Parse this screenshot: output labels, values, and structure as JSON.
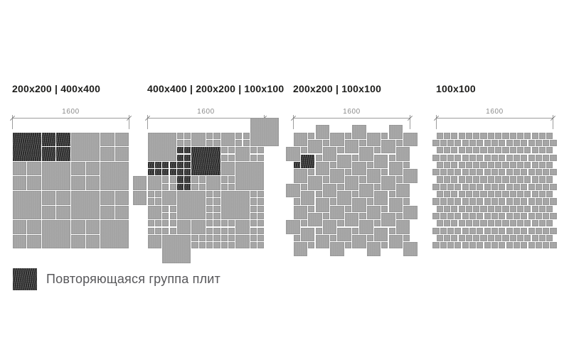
{
  "panels": [
    {
      "label": "200x200 | 400x400",
      "dim": "1600",
      "pattern": {
        "type": "checkerboard",
        "cell": 400,
        "sub": 200,
        "n": 4,
        "dark_cells": [
          [
            0,
            0
          ],
          [
            1,
            0
          ]
        ]
      }
    },
    {
      "label": "400x400 | 200x200 | 100x100",
      "dim": "1600",
      "pattern": {
        "type": "explicit",
        "tiles": [
          [
            1400,
            -200,
            400,
            "g"
          ],
          [
            0,
            0,
            400,
            "g"
          ],
          [
            400,
            0,
            200,
            "g2"
          ],
          [
            600,
            0,
            200,
            "g"
          ],
          [
            800,
            0,
            200,
            "g2"
          ],
          [
            1000,
            0,
            200,
            "g"
          ],
          [
            1200,
            0,
            200,
            "g2"
          ],
          [
            400,
            200,
            200,
            "d2"
          ],
          [
            600,
            200,
            400,
            "d"
          ],
          [
            1000,
            200,
            200,
            "g2"
          ],
          [
            1200,
            200,
            200,
            "g"
          ],
          [
            1400,
            200,
            200,
            "g2"
          ],
          [
            0,
            400,
            200,
            "d2"
          ],
          [
            200,
            400,
            200,
            "d2"
          ],
          [
            400,
            400,
            200,
            "d2"
          ],
          [
            1000,
            400,
            200,
            "g"
          ],
          [
            1200,
            400,
            400,
            "g"
          ],
          [
            -200,
            600,
            200,
            "g"
          ],
          [
            0,
            600,
            200,
            "g"
          ],
          [
            200,
            600,
            200,
            "g2"
          ],
          [
            400,
            600,
            200,
            "d2"
          ],
          [
            600,
            600,
            200,
            "g2"
          ],
          [
            800,
            600,
            200,
            "g"
          ],
          [
            1000,
            600,
            200,
            "g2"
          ],
          [
            -200,
            800,
            200,
            "g"
          ],
          [
            0,
            800,
            200,
            "g2"
          ],
          [
            200,
            800,
            200,
            "g"
          ],
          [
            400,
            800,
            400,
            "g"
          ],
          [
            800,
            800,
            200,
            "g2"
          ],
          [
            1000,
            800,
            400,
            "g"
          ],
          [
            1400,
            800,
            200,
            "g2"
          ],
          [
            0,
            1000,
            200,
            "g"
          ],
          [
            200,
            1000,
            200,
            "g2"
          ],
          [
            800,
            1000,
            200,
            "g2"
          ],
          [
            1400,
            1000,
            200,
            "g2"
          ],
          [
            0,
            1200,
            200,
            "g2"
          ],
          [
            200,
            1200,
            200,
            "g2"
          ],
          [
            400,
            1200,
            200,
            "g"
          ],
          [
            600,
            1200,
            200,
            "g"
          ],
          [
            800,
            1200,
            200,
            "g2"
          ],
          [
            1000,
            1200,
            200,
            "g2"
          ],
          [
            1200,
            1200,
            200,
            "g"
          ],
          [
            1400,
            1200,
            200,
            "g2"
          ],
          [
            0,
            1400,
            200,
            "g"
          ],
          [
            200,
            1400,
            400,
            "g"
          ],
          [
            600,
            1400,
            200,
            "g2"
          ],
          [
            800,
            1400,
            200,
            "g2"
          ],
          [
            1000,
            1400,
            200,
            "g2"
          ],
          [
            1200,
            1400,
            200,
            "g"
          ],
          [
            1400,
            1400,
            200,
            "g2"
          ]
        ]
      }
    },
    {
      "label": "200x200 | 100x100",
      "dim": "1600",
      "pattern": {
        "type": "pinwheel",
        "big": 200,
        "small": 100,
        "extent": 1600,
        "dark_big": [
          100,
          300
        ],
        "dark_small": [
          0,
          400
        ]
      }
    },
    {
      "label": "100x100",
      "dim": "1600",
      "pattern": {
        "type": "running_bond",
        "tile": 100,
        "extent": 1600
      }
    }
  ],
  "legend": {
    "label": "Повторяющаяся группа плит"
  },
  "colors": {
    "tile_gray": "#a4a4a4",
    "tile_dark": "#2b2b2b",
    "gap": "#ffffff",
    "dimension": "#9c9c9c",
    "dimension_text": "#8b8b8b",
    "header_text": "#1d1d1b",
    "legend_text": "#57575a"
  }
}
